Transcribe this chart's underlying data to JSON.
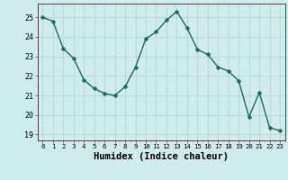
{
  "x": [
    0,
    1,
    2,
    3,
    4,
    5,
    6,
    7,
    8,
    9,
    10,
    11,
    12,
    13,
    14,
    15,
    16,
    17,
    18,
    19,
    20,
    21,
    22,
    23
  ],
  "y": [
    25.0,
    24.8,
    23.4,
    22.9,
    21.8,
    21.35,
    21.1,
    21.0,
    21.45,
    22.45,
    23.9,
    24.25,
    24.85,
    25.3,
    24.45,
    23.35,
    23.1,
    22.45,
    22.25,
    21.75,
    19.9,
    21.15,
    19.35,
    19.2
  ],
  "line_color": "#1a6b5a",
  "marker": "D",
  "markersize": 2.5,
  "linewidth": 1.0,
  "bg_color": "#ceecea",
  "grid_color_major": "#b8d8d4",
  "grid_color_minor": "#d4ecea",
  "xlabel": "Humidex (Indice chaleur)",
  "xlabel_fontsize": 7.5,
  "yticks": [
    19,
    20,
    21,
    22,
    23,
    24,
    25
  ],
  "xticks": [
    0,
    1,
    2,
    3,
    4,
    5,
    6,
    7,
    8,
    9,
    10,
    11,
    12,
    13,
    14,
    15,
    16,
    17,
    18,
    19,
    20,
    21,
    22,
    23
  ],
  "ylim": [
    18.7,
    25.7
  ],
  "xlim": [
    -0.5,
    23.5
  ]
}
